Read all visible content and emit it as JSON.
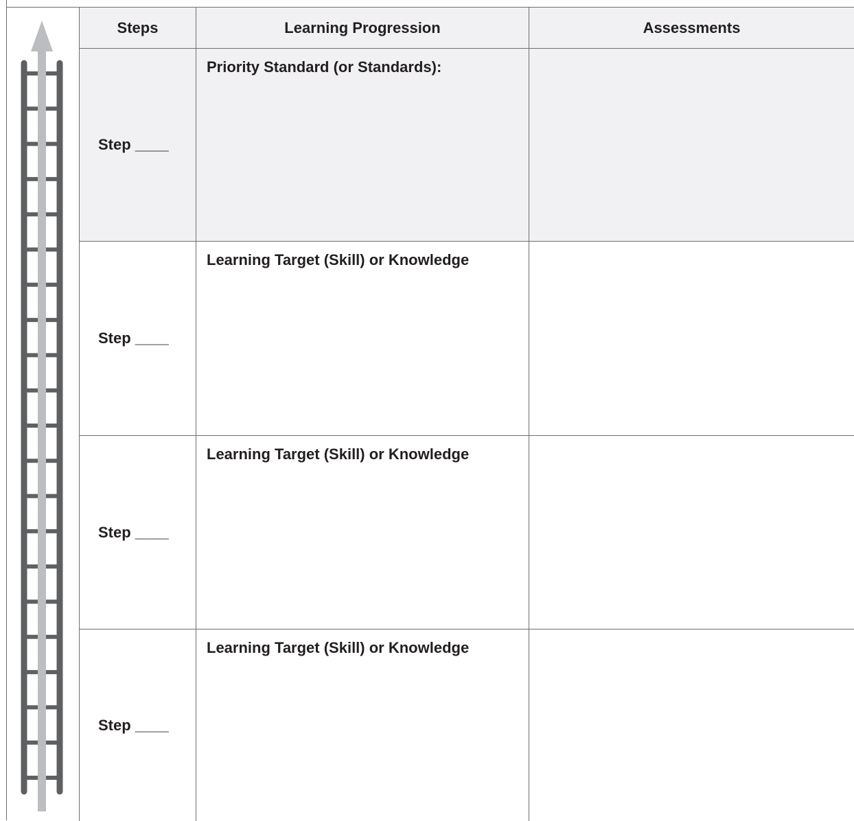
{
  "table": {
    "columns": [
      "Steps",
      "Learning Progression",
      "Assessments"
    ],
    "rows": [
      {
        "step": "Step ____",
        "progression": "Priority Standard (or Standards):"
      },
      {
        "step": "Step ____",
        "progression": "Learning Target (Skill) or Knowledge"
      },
      {
        "step": "Step ____",
        "progression": "Learning Target (Skill) or Knowledge"
      },
      {
        "step": "Step ____",
        "progression": "Learning Target (Skill) or Knowledge"
      }
    ]
  }
}
